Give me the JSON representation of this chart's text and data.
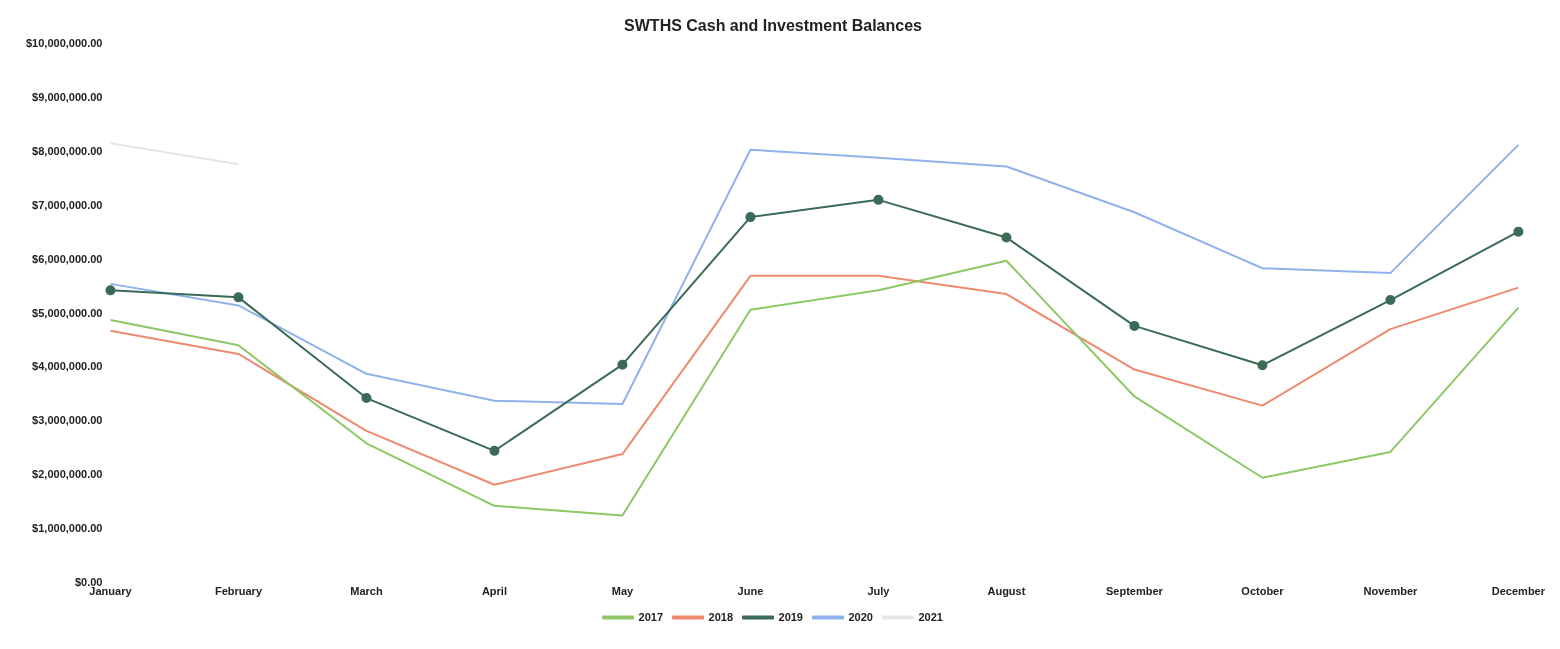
{
  "chart_data": {
    "type": "line",
    "title": "SWTHS Cash and Investment Balances",
    "categories": [
      "January",
      "February",
      "March",
      "April",
      "May",
      "June",
      "July",
      "August",
      "September",
      "October",
      "November",
      "December"
    ],
    "series": [
      {
        "name": "2017",
        "color": "#8cc866",
        "marker": "none",
        "values": [
          4880000,
          4410000,
          2590000,
          1430000,
          1250000,
          5070000,
          5430000,
          5980000,
          3460000,
          1950000,
          2430000,
          5110000
        ]
      },
      {
        "name": "2018",
        "color": "#ee8a70",
        "marker": "none",
        "values": [
          4680000,
          4250000,
          2820000,
          1820000,
          2390000,
          5700000,
          5700000,
          5360000,
          3960000,
          3290000,
          4710000,
          5480000
        ]
      },
      {
        "name": "2019",
        "color": "#3a6b55",
        "marker": "circle",
        "values": [
          5430000,
          5300000,
          3430000,
          2450000,
          4050000,
          6790000,
          7110000,
          6410000,
          4770000,
          4040000,
          5250000,
          6520000
        ]
      },
      {
        "name": "2020",
        "color": "#8fb2ec",
        "marker": "none",
        "values": [
          5550000,
          5150000,
          3880000,
          3380000,
          3320000,
          8040000,
          7890000,
          7730000,
          6880000,
          5840000,
          5750000,
          8130000
        ]
      },
      {
        "name": "2021",
        "color": "#e6e6e6",
        "marker": "none",
        "values": [
          8160000,
          7770000,
          null,
          null,
          null,
          null,
          null,
          null,
          null,
          null,
          null,
          null
        ]
      }
    ],
    "ylim": [
      0,
      10000000
    ],
    "yticks": [
      {
        "value": 0,
        "label": "$0.00"
      },
      {
        "value": 1000000,
        "label": "$1,000,000.00"
      },
      {
        "value": 2000000,
        "label": "$2,000,000.00"
      },
      {
        "value": 3000000,
        "label": "$3,000,000.00"
      },
      {
        "value": 4000000,
        "label": "$4,000,000.00"
      },
      {
        "value": 5000000,
        "label": "$5,000,000.00"
      },
      {
        "value": 6000000,
        "label": "$6,000,000.00"
      },
      {
        "value": 7000000,
        "label": "$7,000,000.00"
      },
      {
        "value": 8000000,
        "label": "$8,000,000.00"
      },
      {
        "value": 9000000,
        "label": "$9,000,000.00"
      },
      {
        "value": 10000000,
        "label": "$10,000,000.00"
      }
    ],
    "grid": false,
    "legend": "bottom"
  }
}
